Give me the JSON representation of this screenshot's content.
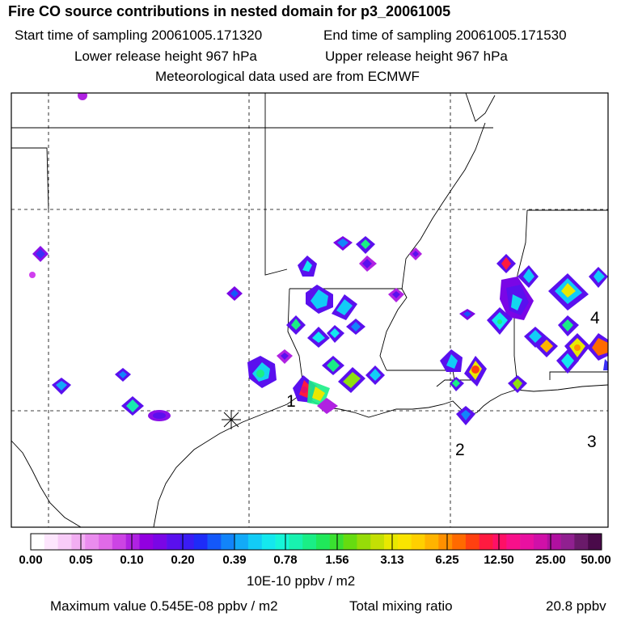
{
  "header": {
    "title": "Fire CO source contributions in nested domain for p3_20061005",
    "start_time": "Start time of sampling 20061005.171320",
    "end_time": "End time of sampling 20061005.171530",
    "lower_height": "Lower release height  967 hPa",
    "upper_height": "Upper release height  967 hPa",
    "met_data": "Meteorological data used are from ECMWF"
  },
  "map": {
    "site_labels": [
      "1",
      "2",
      "3",
      "4"
    ]
  },
  "colorbar": {
    "tick_labels": [
      "0.00",
      "0.05",
      "0.10",
      "0.20",
      "0.39",
      "0.78",
      "1.56",
      "3.13",
      "6.25",
      "12.50",
      "25.00",
      "50.00"
    ],
    "colors": [
      "#ffffff",
      "#fde6fd",
      "#f8ccf8",
      "#f2aef2",
      "#ea8cee",
      "#e06ae8",
      "#cc44e4",
      "#b022e2",
      "#9200e0",
      "#7a06e6",
      "#5a10ee",
      "#3a1cf4",
      "#1e2cf8",
      "#1458fa",
      "#1284fa",
      "#12aaf8",
      "#12ccf6",
      "#14e8ee",
      "#16f6d8",
      "#18f2b0",
      "#1aee86",
      "#20e85a",
      "#3ae030",
      "#66dc10",
      "#96dc08",
      "#c4e004",
      "#e8e800",
      "#fae400",
      "#ffd000",
      "#ffb400",
      "#ff9000",
      "#ff6a00",
      "#ff4010",
      "#ff1a40",
      "#ff1066",
      "#f8108a",
      "#e810a0",
      "#d010a8",
      "#b010a0",
      "#902090",
      "#6a1a6a",
      "#4a0a4a"
    ],
    "unit": "10E-10 ppbv / m2"
  },
  "footer": {
    "max_value": "Maximum value  0.545E-08 ppbv / m2",
    "total_label": "Total mixing ratio",
    "total_value": "20.8 ppbv"
  }
}
